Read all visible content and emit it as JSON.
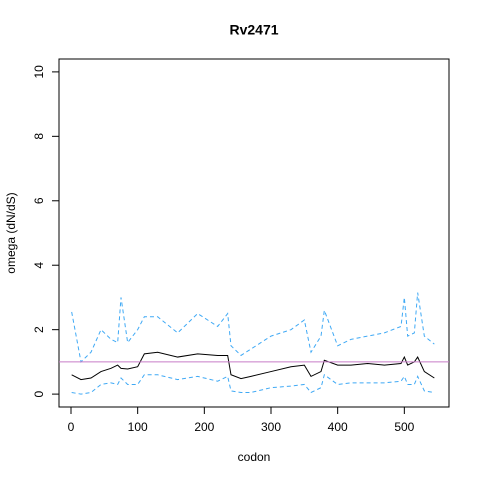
{
  "chart_data": {
    "type": "line",
    "title": "Rv2471",
    "xlabel": "codon",
    "ylabel": "omega (dN/dS)",
    "x": [
      1,
      15,
      30,
      45,
      60,
      70,
      75,
      85,
      100,
      110,
      130,
      160,
      190,
      220,
      235,
      240,
      255,
      270,
      300,
      330,
      350,
      360,
      375,
      380,
      400,
      420,
      445,
      470,
      495,
      500,
      505,
      515,
      520,
      530,
      545
    ],
    "series": [
      {
        "color": "#3fa9f5",
        "dash": true,
        "values": [
          2.55,
          1.0,
          1.3,
          2.0,
          1.7,
          1.6,
          3.0,
          1.6,
          2.0,
          2.4,
          2.4,
          1.9,
          2.5,
          2.1,
          2.5,
          1.5,
          1.2,
          1.4,
          1.8,
          2.0,
          2.3,
          1.3,
          1.8,
          2.6,
          1.5,
          1.7,
          1.8,
          1.9,
          2.1,
          3.0,
          1.8,
          1.9,
          3.15,
          1.8,
          1.55
        ]
      },
      {
        "color": "#000000",
        "dash": false,
        "values": [
          0.6,
          0.45,
          0.5,
          0.7,
          0.8,
          0.9,
          0.8,
          0.78,
          0.85,
          1.25,
          1.3,
          1.15,
          1.25,
          1.2,
          1.2,
          0.6,
          0.48,
          0.55,
          0.7,
          0.85,
          0.9,
          0.55,
          0.7,
          1.05,
          0.9,
          0.9,
          0.95,
          0.9,
          0.95,
          1.15,
          0.9,
          1.0,
          1.15,
          0.7,
          0.5
        ]
      },
      {
        "color": "#3fa9f5",
        "dash": true,
        "values": [
          0.05,
          0.0,
          0.05,
          0.3,
          0.35,
          0.3,
          0.5,
          0.3,
          0.3,
          0.6,
          0.6,
          0.45,
          0.55,
          0.4,
          0.55,
          0.1,
          0.05,
          0.05,
          0.2,
          0.25,
          0.3,
          0.05,
          0.2,
          0.6,
          0.3,
          0.35,
          0.35,
          0.35,
          0.4,
          0.55,
          0.3,
          0.3,
          0.55,
          0.1,
          0.05
        ]
      }
    ],
    "hline": {
      "value": 1,
      "color": "#c77cc7"
    },
    "xlim": [
      -18,
      567
    ],
    "ylim": [
      -0.4,
      10.4
    ],
    "xticks": [
      0,
      100,
      200,
      300,
      400,
      500
    ],
    "yticks": [
      0,
      2,
      4,
      6,
      8,
      10
    ]
  }
}
